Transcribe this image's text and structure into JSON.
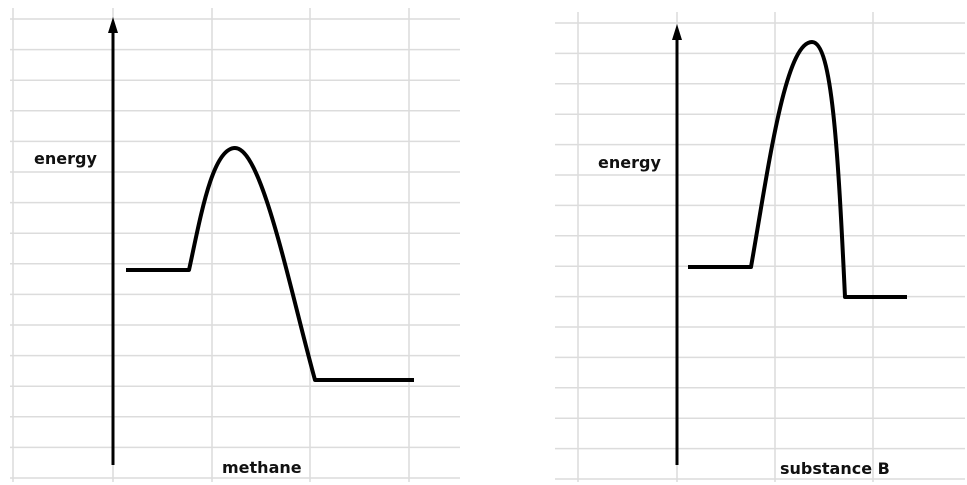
{
  "diagrams": [
    {
      "y_label": "energy",
      "x_label": "methane"
    },
    {
      "y_label": "energy",
      "x_label": "substance B"
    }
  ]
}
